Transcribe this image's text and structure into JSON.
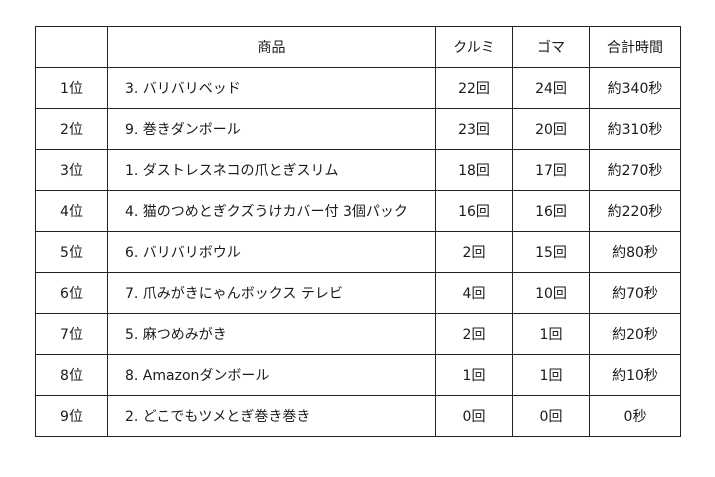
{
  "table": {
    "headers": {
      "rank": "",
      "product": "商品",
      "kurumi": "クルミ",
      "goma": "ゴマ",
      "total": "合計時間"
    },
    "rows": [
      {
        "rank": "1位",
        "product": "3. バリバリベッド",
        "kurumi": "22回",
        "goma": "24回",
        "total": "約340秒"
      },
      {
        "rank": "2位",
        "product": "9. 巻きダンボール",
        "kurumi": "23回",
        "goma": "20回",
        "total": "約310秒"
      },
      {
        "rank": "3位",
        "product": "1. ダストレスネコの爪とぎスリム",
        "kurumi": "18回",
        "goma": "17回",
        "total": "約270秒"
      },
      {
        "rank": "4位",
        "product": "4. 猫のつめとぎクズうけカバー付 3個パック",
        "kurumi": "16回",
        "goma": "16回",
        "total": "約220秒"
      },
      {
        "rank": "5位",
        "product": "6. バリバリボウル",
        "kurumi": "2回",
        "goma": "15回",
        "total": "約80秒"
      },
      {
        "rank": "6位",
        "product": "7. 爪みがきにゃんボックス テレビ",
        "kurumi": "4回",
        "goma": "10回",
        "total": "約70秒"
      },
      {
        "rank": "7位",
        "product": "5. 麻つめみがき",
        "kurumi": "2回",
        "goma": "1回",
        "total": "約20秒"
      },
      {
        "rank": "8位",
        "product": "8. Amazonダンボール",
        "kurumi": "1回",
        "goma": "1回",
        "total": "約10秒"
      },
      {
        "rank": "9位",
        "product": "2. どこでもツメとぎ巻き巻き",
        "kurumi": "0回",
        "goma": "0回",
        "total": "0秒"
      }
    ]
  }
}
